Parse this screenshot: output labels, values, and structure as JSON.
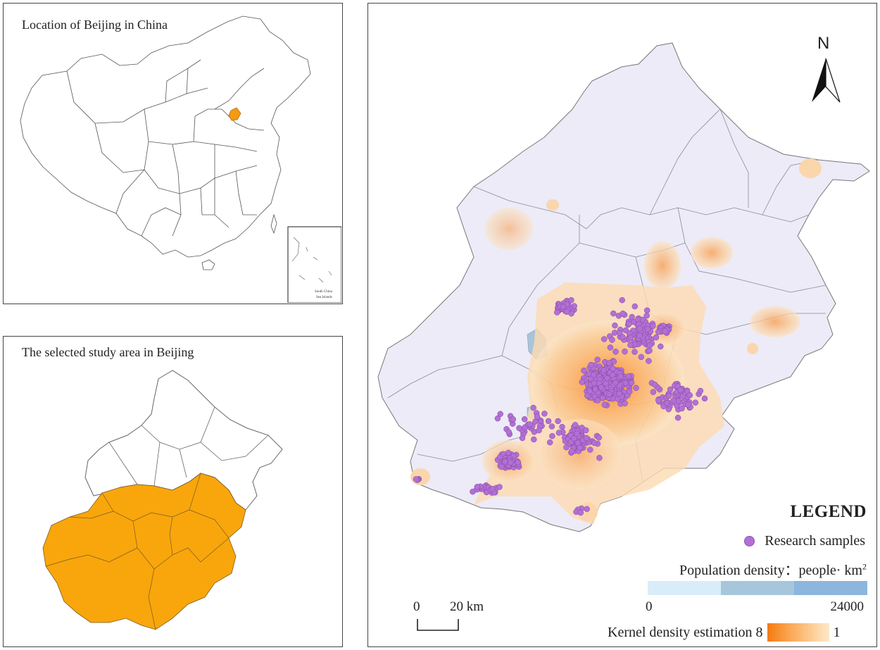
{
  "panels": {
    "china": {
      "title": "Location of Beijing in China",
      "inset_label_1": "South China",
      "inset_label_2": "Sea Islands"
    },
    "study": {
      "title": "The selected study area in Beijing"
    }
  },
  "map": {
    "north": "N",
    "scale_zero": "0",
    "scale_label": "20 km"
  },
  "legend": {
    "title": "LEGEND",
    "samples_label": "Research samples",
    "population_label": "Population density：people· km",
    "population_sup": "2",
    "population_min": "0",
    "population_max": "24000",
    "kde_label": "Kernel density estimation",
    "kde_high": "8",
    "kde_low": "1"
  },
  "colors": {
    "study_fill": "#f8a60c",
    "beijing_marker": "#f59a12",
    "land": "#ecebf7",
    "sample": "#b46fd6",
    "water": "#a9c4d8",
    "pop_ramp": [
      "#d9edf8",
      "#a6c6dc",
      "#8db6de"
    ],
    "kde_ramp": [
      "#f57a10",
      "#f88f2e",
      "#faa44f",
      "#fbb66d",
      "#fcc78b",
      "#fdd9ac",
      "#fde7c8"
    ]
  }
}
